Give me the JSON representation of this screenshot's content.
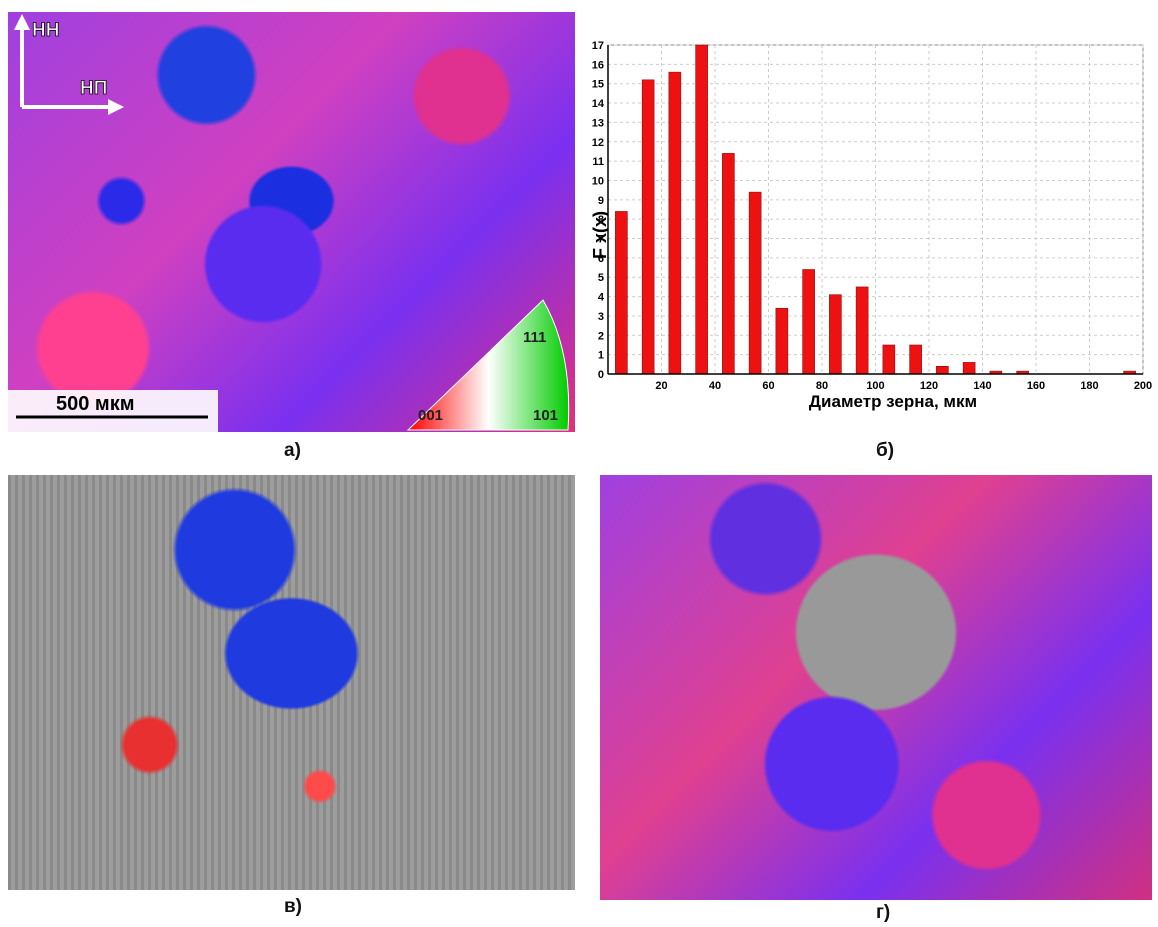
{
  "chart_data": {
    "type": "bar",
    "x": [
      5,
      15,
      25,
      35,
      45,
      55,
      65,
      75,
      85,
      95,
      105,
      115,
      125,
      135,
      145,
      155,
      195
    ],
    "values": [
      8.4,
      15.2,
      15.6,
      17,
      11.4,
      9.4,
      3.4,
      5.4,
      4.1,
      4.5,
      1.5,
      1.5,
      0.4,
      0.6,
      0.15,
      0.15,
      0.15
    ],
    "color": "#ee1111",
    "xlim": [
      0,
      200
    ],
    "xticks": [
      20,
      40,
      60,
      80,
      100,
      120,
      140,
      160,
      180,
      200
    ],
    "ylim": [
      0,
      17
    ],
    "yticks": [
      0,
      1,
      2,
      3,
      4,
      5,
      6,
      7,
      8,
      9,
      10,
      11,
      12,
      13,
      14,
      15,
      16,
      17
    ],
    "grid": true,
    "xlabel": "Диаметр зерна, мкм",
    "ylabel": "F x(x)"
  },
  "panels": {
    "a": {
      "label": "а)",
      "axis_nn": "НН",
      "axis_np": "НП",
      "scale": "500 мкм",
      "pole_111": "111",
      "pole_001": "001",
      "pole_101": "101"
    },
    "b": {
      "label": "б)"
    },
    "v": {
      "label": "в)"
    },
    "g": {
      "label": "г)"
    }
  }
}
